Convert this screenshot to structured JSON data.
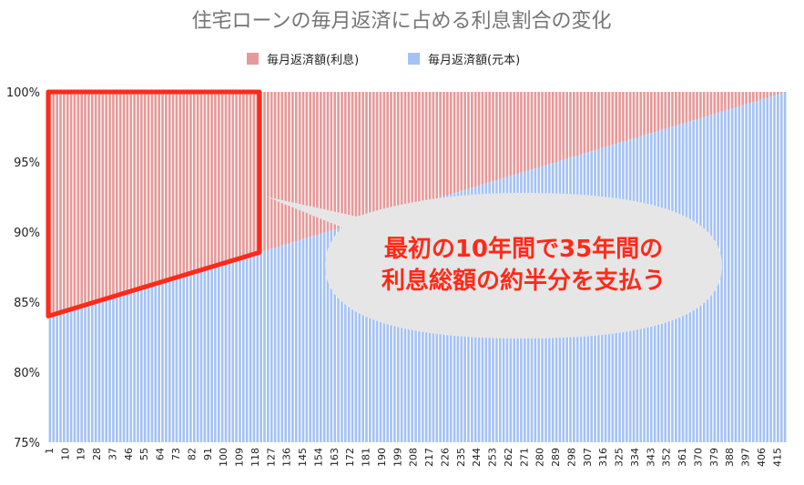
{
  "chart_data": {
    "type": "bar",
    "stacked": true,
    "normalized": true,
    "title": "住宅ローンの毎月返済に占める利息割合の変化",
    "xlabel": "",
    "ylabel": "",
    "ylim": [
      0.75,
      1.0
    ],
    "y_ticks": [
      "75%",
      "80%",
      "85%",
      "90%",
      "95%",
      "100%"
    ],
    "x_count": 420,
    "x_ticks": [
      "1",
      "10",
      "19",
      "28",
      "37",
      "46",
      "55",
      "64",
      "73",
      "82",
      "91",
      "100",
      "109",
      "118",
      "127",
      "136",
      "145",
      "154",
      "163",
      "172",
      "181",
      "190",
      "199",
      "208",
      "217",
      "226",
      "235",
      "244",
      "253",
      "262",
      "271",
      "280",
      "289",
      "298",
      "307",
      "316",
      "325",
      "334",
      "343",
      "352",
      "361",
      "370",
      "379",
      "388",
      "397",
      "406",
      "415"
    ],
    "legend_position": "top",
    "grid": false,
    "series": [
      {
        "name": "毎月返済額(利息)",
        "color": "#e59a9a",
        "share_start": 0.16,
        "share_end": 0.0
      },
      {
        "name": "毎月返済額(元本)",
        "color": "#a4c2f4",
        "share_start": 0.84,
        "share_end": 1.0
      }
    ],
    "annotation": {
      "highlight_range": [
        1,
        120
      ],
      "highlight_color": "#ff2a1a",
      "callout_lines": [
        "最初の10年間で35年間の",
        "利息総額の約半分を支払う"
      ],
      "callout_fill": "#e6e6e6"
    }
  }
}
